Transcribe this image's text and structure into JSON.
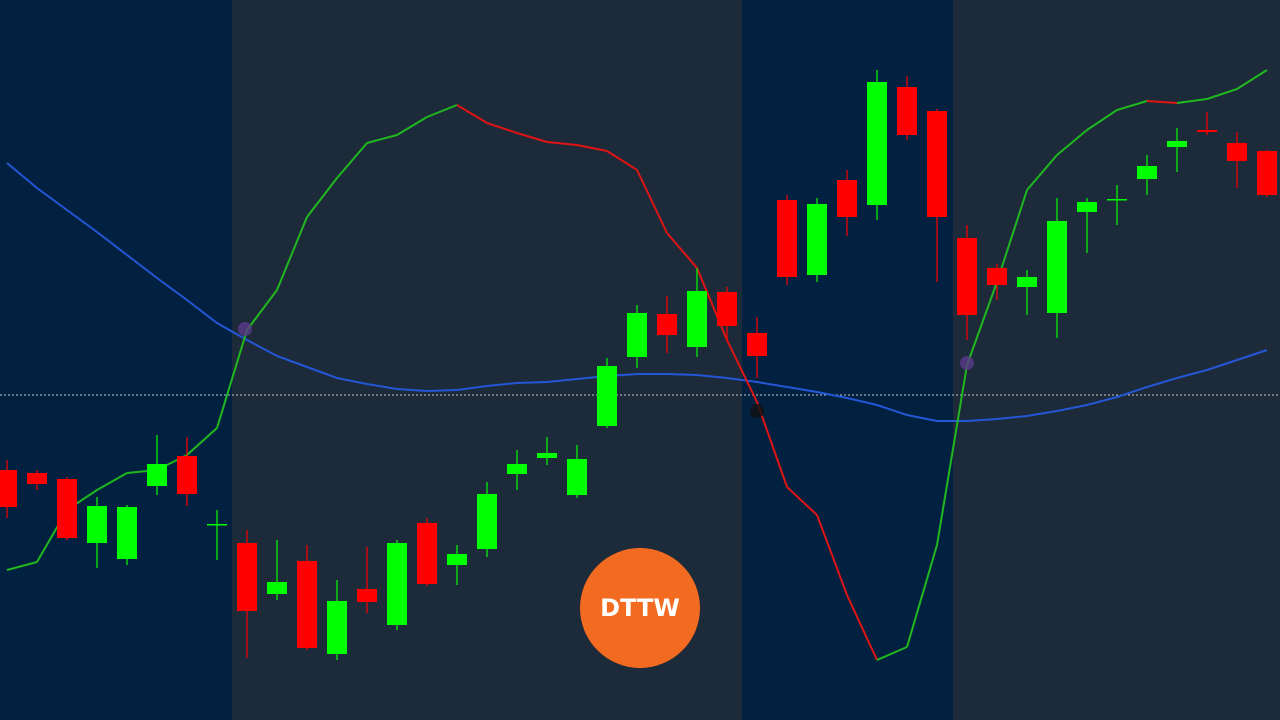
{
  "chart_data": {
    "type": "candlestick",
    "categories": [
      null,
      null,
      null,
      null,
      null,
      null,
      null,
      null,
      null,
      null,
      null,
      null,
      null,
      null,
      null,
      null,
      null,
      null,
      null,
      null,
      null,
      null,
      null,
      null,
      null,
      null,
      null,
      null,
      null,
      null,
      null,
      null,
      null,
      null,
      null,
      null,
      null,
      null,
      null,
      null,
      null,
      null,
      null
    ],
    "open": [
      250,
      247,
      241,
      177,
      161,
      234,
      264,
      195,
      177,
      126,
      159,
      66,
      131,
      95,
      197,
      155,
      171,
      246,
      262,
      225,
      294,
      363,
      406,
      373,
      428,
      387,
      520,
      445,
      540,
      515,
      633,
      609,
      482,
      452,
      433,
      407,
      508,
      520,
      541,
      573,
      590,
      577,
      569
    ],
    "high": [
      260,
      250,
      243,
      223,
      215,
      285,
      283,
      210,
      190,
      180,
      175,
      140,
      173,
      180,
      202,
      175,
      238,
      270,
      283,
      275,
      362,
      415,
      424,
      452,
      433,
      403,
      525,
      522,
      550,
      650,
      644,
      611,
      495,
      456,
      450,
      522,
      522,
      535,
      565,
      592,
      608,
      588,
      570
    ],
    "low": [
      202,
      230,
      180,
      152,
      155,
      225,
      214,
      160,
      62,
      120,
      70,
      60,
      107,
      90,
      134,
      135,
      163,
      230,
      255,
      222,
      292,
      352,
      367,
      363,
      378,
      342,
      435,
      438,
      484,
      500,
      580,
      438,
      380,
      420,
      405,
      382,
      467,
      495,
      525,
      548,
      585,
      532,
      523
    ],
    "close": [
      213,
      236,
      182,
      214,
      213,
      256,
      226,
      196,
      109,
      138,
      72,
      119,
      118,
      177,
      136,
      166,
      226,
      256,
      267,
      261,
      354,
      407,
      385,
      429,
      394,
      364,
      443,
      516,
      503,
      638,
      585,
      503,
      405,
      435,
      443,
      499,
      518,
      521,
      554,
      579,
      588,
      559,
      525
    ],
    "up_color": "#00ff00",
    "down_color": "#ff0000",
    "moving_average": {
      "color": "#2457d6",
      "values": [
        557,
        532,
        510,
        488,
        465,
        442,
        420,
        397,
        380,
        364,
        353,
        342,
        336,
        331,
        329,
        330,
        334,
        337,
        338,
        341,
        344,
        346,
        346,
        345,
        342,
        338,
        333,
        328,
        322,
        315,
        305,
        299,
        299,
        301,
        304,
        309,
        315,
        323,
        333,
        342,
        350,
        360,
        370
      ]
    },
    "oscillator": {
      "up_color": "#1fb81f",
      "down_color": "#e01414",
      "values": [
        150,
        158,
        210,
        230,
        247,
        250,
        265,
        292,
        390,
        430,
        503,
        542,
        577,
        585,
        603,
        615,
        597,
        587,
        578,
        575,
        569,
        550,
        487,
        452,
        380,
        318,
        233,
        205,
        125,
        60,
        73,
        175,
        355,
        438,
        530,
        565,
        590,
        610,
        619,
        617,
        621,
        631,
        650
      ]
    },
    "reference_line": 325,
    "ylim": [
      0,
      720
    ],
    "logo": "DTTW"
  }
}
